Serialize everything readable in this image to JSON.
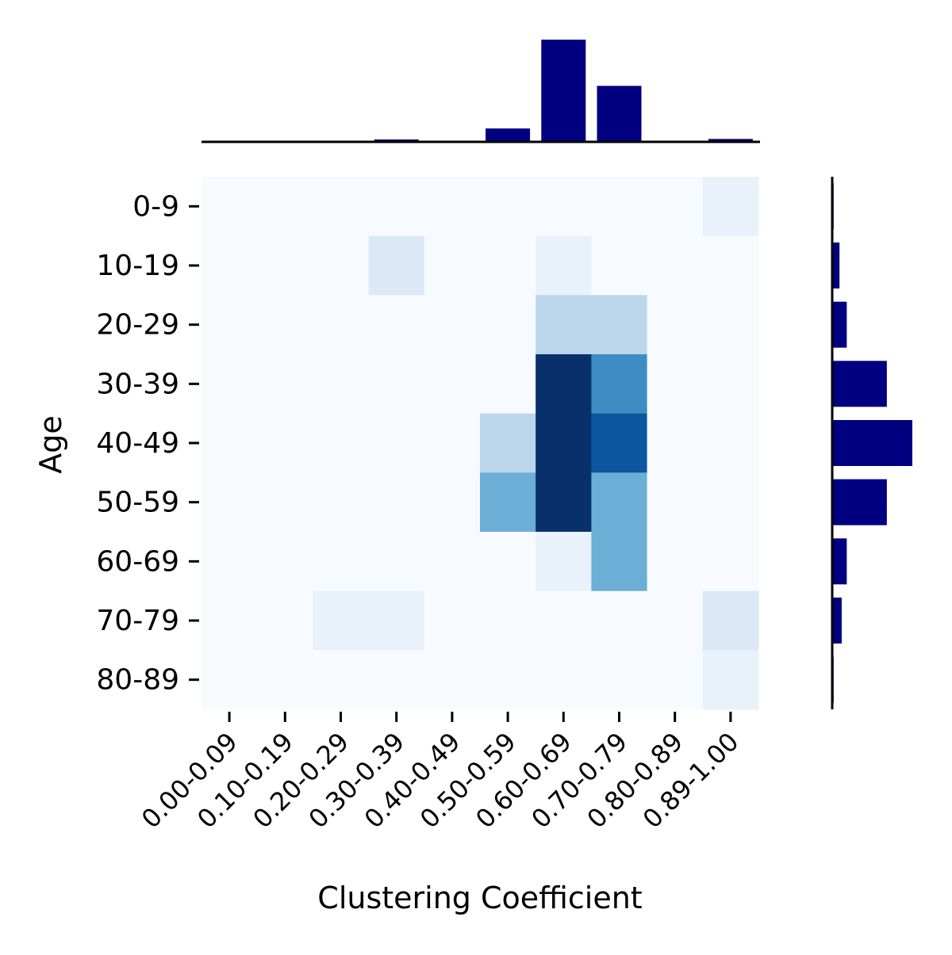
{
  "chart_data": {
    "type": "heatmap",
    "title": "",
    "xlabel": "Clustering Coefficient",
    "ylabel": "Age",
    "x_categories": [
      "0.00-0.09",
      "0.10-0.19",
      "0.20-0.29",
      "0.30-0.39",
      "0.40-0.49",
      "0.50-0.59",
      "0.60-0.69",
      "0.70-0.79",
      "0.80-0.89",
      "0.89-1.00"
    ],
    "y_categories": [
      "0-9",
      "10-19",
      "20-29",
      "30-39",
      "40-49",
      "50-59",
      "60-69",
      "70-79",
      "80-89"
    ],
    "values": [
      [
        0,
        0,
        0,
        0,
        0,
        0,
        0,
        0,
        0,
        1
      ],
      [
        0,
        0,
        0,
        2,
        0,
        0,
        1,
        0,
        0,
        0
      ],
      [
        0,
        0,
        0,
        0,
        0,
        0,
        4,
        4,
        0,
        0
      ],
      [
        0,
        0,
        0,
        0,
        0,
        0,
        14,
        9,
        0,
        0
      ],
      [
        0,
        0,
        0,
        0,
        0,
        4,
        14,
        12,
        0,
        0
      ],
      [
        0,
        0,
        0,
        0,
        0,
        7,
        14,
        7,
        0,
        0
      ],
      [
        0,
        0,
        0,
        0,
        0,
        0,
        1,
        7,
        0,
        0
      ],
      [
        0,
        0,
        1,
        1,
        0,
        0,
        0,
        0,
        0,
        2
      ],
      [
        0,
        0,
        0,
        0,
        0,
        0,
        0,
        0,
        0,
        1
      ]
    ],
    "colormap": "Blues",
    "grid": false,
    "marginal_x": {
      "type": "bar",
      "orientation": "vertical",
      "values": [
        0,
        0,
        0.2,
        1,
        0,
        5.5,
        42,
        23,
        0,
        1.2
      ]
    },
    "marginal_y": {
      "type": "bar",
      "orientation": "horizontal",
      "values": [
        0.2,
        1,
        2,
        7.5,
        11,
        7.5,
        2,
        1.3,
        0.2
      ]
    },
    "marginal_color": "#000080"
  }
}
